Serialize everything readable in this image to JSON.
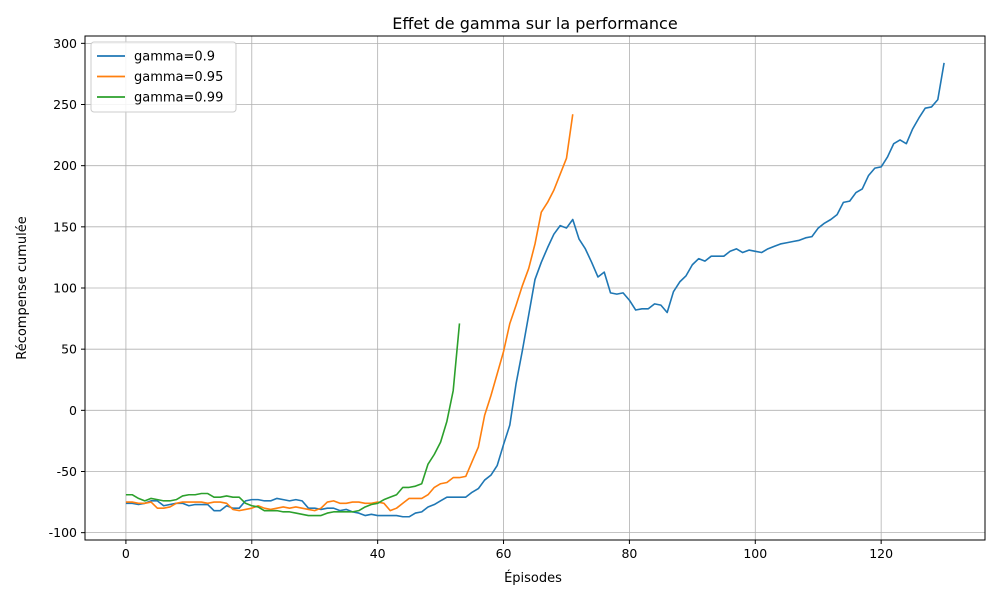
{
  "chart_data": {
    "type": "line",
    "title": "Effet de gamma sur la performance",
    "xlabel": "Épisodes",
    "ylabel": "Récompense cumulée",
    "xlim": [
      -6.5,
      136.5
    ],
    "ylim": [
      -106,
      306
    ],
    "xticks": [
      0,
      20,
      40,
      60,
      80,
      100,
      120
    ],
    "yticks": [
      -100,
      -50,
      0,
      50,
      100,
      150,
      200,
      250,
      300
    ],
    "grid": true,
    "legend_position": "upper-left",
    "series": [
      {
        "name": "gamma=0.9",
        "color": "#1f77b4",
        "values": [
          -76,
          -76,
          -77,
          -76,
          -74,
          -74,
          -78,
          -77,
          -76,
          -76,
          -78,
          -77,
          -77,
          -77,
          -82,
          -82,
          -78,
          -80,
          -80,
          -74,
          -73,
          -73,
          -74,
          -74,
          -72,
          -73,
          -74,
          -73,
          -74,
          -80,
          -80,
          -81,
          -80,
          -80,
          -82,
          -81,
          -83,
          -84,
          -86,
          -85,
          -86,
          -86,
          -86,
          -86,
          -87,
          -87,
          -84,
          -83,
          -79,
          -77,
          -74,
          -71,
          -71,
          -71,
          -71,
          -67,
          -64,
          -57,
          -53,
          -45,
          -28,
          -12,
          22,
          49,
          78,
          107,
          121,
          133,
          144,
          151,
          149,
          156,
          140,
          132,
          121,
          109,
          113,
          96,
          95,
          96,
          90,
          82,
          83,
          83,
          87,
          86,
          80,
          97,
          105,
          110,
          119,
          124,
          122,
          126,
          126,
          126,
          130,
          132,
          129,
          131,
          130,
          129,
          132,
          134,
          136,
          137,
          138,
          139,
          141,
          142,
          149,
          153,
          156,
          160,
          170,
          171,
          178,
          181,
          192,
          198,
          199,
          207,
          218,
          221,
          218,
          230,
          239,
          247,
          248,
          254,
          284
        ]
      },
      {
        "name": "gamma=0.95",
        "color": "#ff7f0e",
        "values": [
          -75,
          -75,
          -76,
          -76,
          -75,
          -80,
          -80,
          -79,
          -76,
          -75,
          -75,
          -75,
          -75,
          -76,
          -75,
          -75,
          -76,
          -81,
          -82,
          -81,
          -80,
          -78,
          -80,
          -81,
          -80,
          -79,
          -80,
          -79,
          -80,
          -81,
          -82,
          -80,
          -75,
          -74,
          -76,
          -76,
          -75,
          -75,
          -76,
          -76,
          -75,
          -76,
          -82,
          -80,
          -76,
          -72,
          -72,
          -72,
          -69,
          -63,
          -60,
          -59,
          -55,
          -55,
          -54,
          -42,
          -30,
          -4,
          12,
          30,
          48,
          71,
          86,
          102,
          116,
          136,
          162,
          170,
          180,
          193,
          206,
          242
        ]
      },
      {
        "name": "gamma=0.99",
        "color": "#2ca02c",
        "values": [
          -69,
          -69,
          -72,
          -74,
          -72,
          -73,
          -74,
          -74,
          -73,
          -70,
          -69,
          -69,
          -68,
          -68,
          -71,
          -71,
          -70,
          -71,
          -71,
          -76,
          -78,
          -79,
          -82,
          -82,
          -82,
          -83,
          -83,
          -84,
          -85,
          -86,
          -86,
          -86,
          -84,
          -83,
          -83,
          -83,
          -83,
          -82,
          -79,
          -77,
          -76,
          -73,
          -71,
          -69,
          -63,
          -63,
          -62,
          -60,
          -44,
          -36,
          -26,
          -9,
          16,
          71
        ]
      }
    ]
  }
}
